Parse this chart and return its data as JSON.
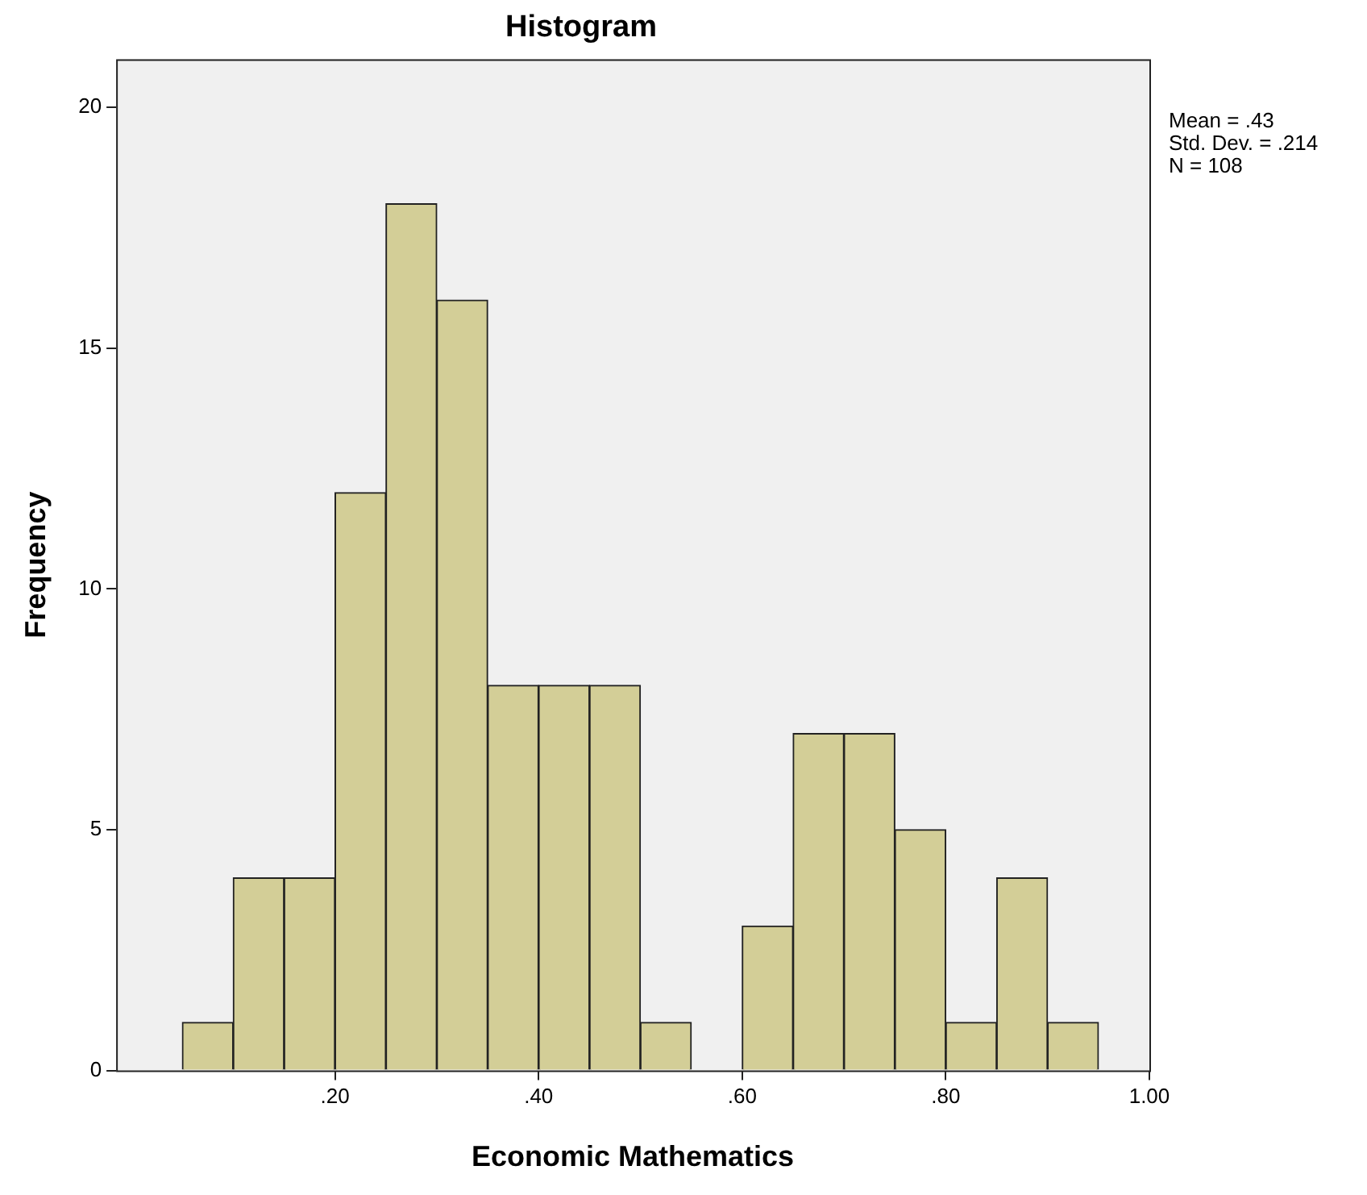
{
  "chart_data": {
    "type": "histogram",
    "title": "Histogram",
    "xlabel": "Economic Mathematics",
    "ylabel": "Frequency",
    "bins": [
      0.05,
      0.1,
      0.15,
      0.2,
      0.25,
      0.3,
      0.35,
      0.4,
      0.45,
      0.5,
      0.55,
      0.6,
      0.65,
      0.7,
      0.75,
      0.8,
      0.85,
      0.9,
      0.95
    ],
    "values": [
      1,
      4,
      4,
      12,
      18,
      16,
      8,
      8,
      8,
      1,
      0,
      3,
      7,
      7,
      5,
      1,
      4,
      1
    ],
    "color": "#d3ce97",
    "xlim": [
      -0.015,
      1.0
    ],
    "ylim": [
      0,
      21
    ],
    "xticks": [
      {
        "value": 0.2,
        "label": ".20"
      },
      {
        "value": 0.4,
        "label": ".40"
      },
      {
        "value": 0.6,
        "label": ".60"
      },
      {
        "value": 0.8,
        "label": ".80"
      },
      {
        "value": 1.0,
        "label": "1.00"
      }
    ],
    "yticks": [
      0,
      5,
      10,
      15,
      20
    ],
    "grid": false,
    "legend": false,
    "annotations": [
      "Mean = .43",
      "Std. Dev. = .214",
      "N = 108"
    ]
  }
}
